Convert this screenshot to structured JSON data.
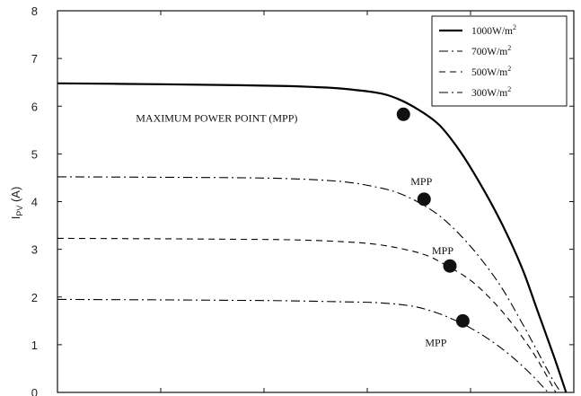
{
  "chart_data": {
    "type": "line",
    "title": "",
    "xlabel": "",
    "ylabel": "I_PV (A)",
    "ylabel_main": "I",
    "ylabel_sub": "PV",
    "ylabel_unit": " (A)",
    "xlim": [
      0,
      1
    ],
    "ylim": [
      0,
      8
    ],
    "y_ticks": [
      0,
      1,
      2,
      3,
      4,
      5,
      6,
      7,
      8
    ],
    "x_tick_positions": [
      0,
      0.2,
      0.4,
      0.6,
      0.8,
      1.0
    ],
    "show_x_tick_labels": false,
    "grid": false,
    "legend_position": "top-right",
    "series": [
      {
        "name": "1000W/m",
        "unit_sup": "2",
        "style": "solid",
        "color": "#000000",
        "x": [
          0,
          0.2,
          0.35,
          0.45,
          0.5,
          0.55,
          0.62,
          0.66,
          0.7,
          0.74,
          0.78,
          0.82,
          0.86,
          0.9,
          0.93,
          0.96,
          0.985
        ],
        "y": [
          6.48,
          6.46,
          6.44,
          6.42,
          6.4,
          6.37,
          6.28,
          6.15,
          5.92,
          5.6,
          5.05,
          4.35,
          3.55,
          2.6,
          1.7,
          0.8,
          0.0
        ],
        "mpp": {
          "x": 0.67,
          "y": 5.83,
          "label": "MAXIMUM POWER POINT (MPP)"
        }
      },
      {
        "name": "700W/m",
        "unit_sup": "2",
        "style": "dashdot",
        "color": "#000000",
        "x": [
          0,
          0.2,
          0.35,
          0.45,
          0.55,
          0.62,
          0.66,
          0.7,
          0.74,
          0.78,
          0.82,
          0.86,
          0.9,
          0.93,
          0.96,
          0.975
        ],
        "y": [
          4.52,
          4.51,
          4.5,
          4.48,
          4.42,
          4.3,
          4.18,
          3.98,
          3.7,
          3.3,
          2.8,
          2.2,
          1.45,
          0.85,
          0.25,
          0.0
        ],
        "mpp": {
          "x": 0.71,
          "y": 4.05,
          "label": "MPP"
        }
      },
      {
        "name": "500W/m",
        "unit_sup": "2",
        "style": "dashed",
        "color": "#000000",
        "x": [
          0,
          0.2,
          0.35,
          0.45,
          0.55,
          0.62,
          0.68,
          0.72,
          0.76,
          0.8,
          0.84,
          0.88,
          0.92,
          0.95,
          0.965
        ],
        "y": [
          3.23,
          3.22,
          3.21,
          3.2,
          3.16,
          3.1,
          2.98,
          2.85,
          2.62,
          2.35,
          1.95,
          1.45,
          0.85,
          0.3,
          0.0
        ],
        "mpp": {
          "x": 0.76,
          "y": 2.65,
          "label": "MPP"
        }
      },
      {
        "name": "300W/m",
        "unit_sup": "2",
        "style": "dashdot",
        "color": "#000000",
        "x": [
          0,
          0.2,
          0.35,
          0.45,
          0.55,
          0.62,
          0.68,
          0.72,
          0.76,
          0.8,
          0.84,
          0.88,
          0.92,
          0.95
        ],
        "y": [
          1.95,
          1.94,
          1.93,
          1.92,
          1.9,
          1.88,
          1.82,
          1.72,
          1.56,
          1.35,
          1.08,
          0.75,
          0.35,
          0.0
        ],
        "mpp": {
          "x": 0.785,
          "y": 1.5,
          "label": "MPP"
        }
      }
    ]
  }
}
